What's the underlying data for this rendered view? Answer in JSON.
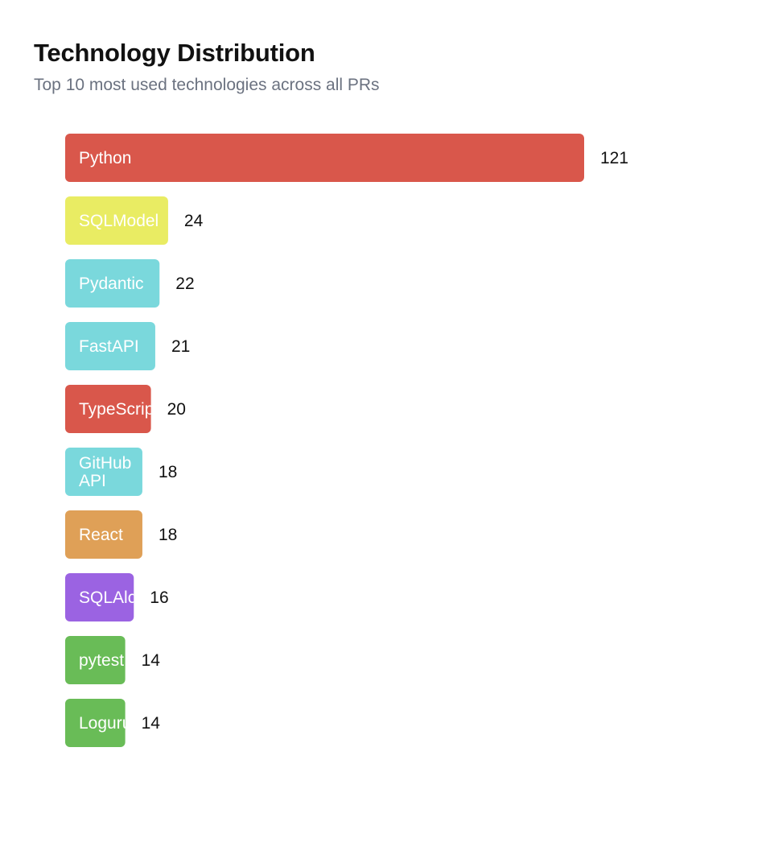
{
  "card": {
    "title": "Technology Distribution",
    "subtitle": "Top 10 most used technologies across all PRs"
  },
  "chart_data": {
    "type": "bar",
    "orientation": "horizontal",
    "title": "Technology Distribution",
    "subtitle": "Top 10 most used technologies across all PRs",
    "categories": [
      "Python",
      "SQLModel",
      "Pydantic",
      "FastAPI",
      "TypeScript",
      "GitHub API",
      "React",
      "SQLAlchemy",
      "pytest",
      "Loguru"
    ],
    "values": [
      121,
      24,
      22,
      21,
      20,
      18,
      18,
      16,
      14,
      14
    ],
    "colors": [
      "#d9574b",
      "#e9ec63",
      "#7ad8dc",
      "#7ad8dc",
      "#d9574b",
      "#7ad8dc",
      "#dfa057",
      "#9b63e2",
      "#69bc57",
      "#69bc57"
    ],
    "xlabel": "",
    "ylabel": "",
    "xlim": [
      0,
      121
    ],
    "grid": false,
    "legend": "none"
  }
}
